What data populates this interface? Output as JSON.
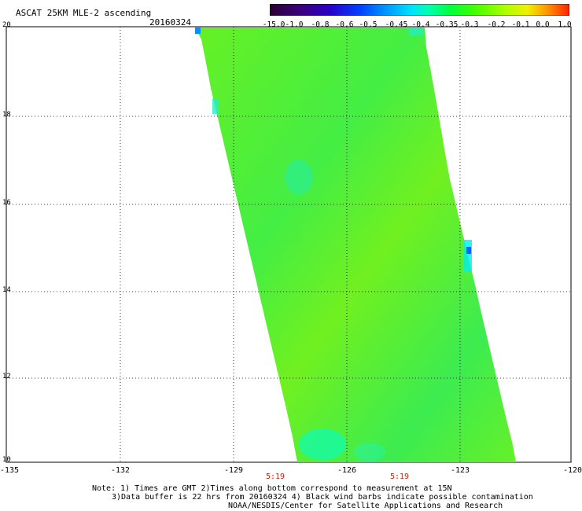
{
  "title": "ASCAT 25KM MLE-2 ascending",
  "date": "20160324",
  "colorbar": {
    "labels": [
      "-15.0",
      "-1.0",
      "-0.8",
      "-0.6",
      "-0.5",
      "-0.45",
      "-0.4",
      "-0.35",
      "-0.3",
      "-0.2",
      "-0.1",
      "0.0",
      "1.0"
    ],
    "colors": [
      "#2b0030",
      "#3a007a",
      "#2a00c8",
      "#0040ff",
      "#0090ff",
      "#00d8ff",
      "#00ffb0",
      "#00ff40",
      "#40ff00",
      "#a0ff00",
      "#f0f000",
      "#ff9000",
      "#ff2000"
    ]
  },
  "map": {
    "lon_labels": [
      "-135",
      "-132",
      "-129",
      "-126",
      "-123",
      "-120"
    ],
    "lat_labels": [
      "20",
      "18",
      "16",
      "14",
      "12",
      "10"
    ],
    "times": [
      "5:19",
      "5:19"
    ],
    "swath_color": "#55ee22"
  },
  "notes": {
    "line1": "Note: 1) Times are GMT 2)Times along bottom correspond to measurement at 15N",
    "line2": "3)Data buffer is 22 hrs from 20160324 4) Black wind barbs indicate possible contamination",
    "line3": "NOAA/NESDIS/Center for Satellite Applications and Research"
  }
}
